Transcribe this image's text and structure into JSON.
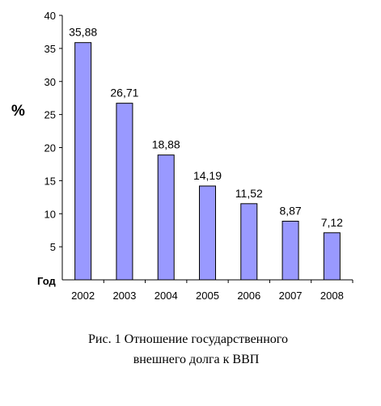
{
  "chart_data": {
    "type": "bar",
    "categories": [
      "2002",
      "2003",
      "2004",
      "2005",
      "2006",
      "2007",
      "2008"
    ],
    "values": [
      35.88,
      26.71,
      18.88,
      14.19,
      11.52,
      8.87,
      7.12
    ],
    "data_labels": [
      "35,88",
      "26,71",
      "18,88",
      "14,19",
      "11,52",
      "8,87",
      "7,12"
    ],
    "ylabel": "%",
    "xlabel": "Год",
    "ylim": [
      0,
      40
    ],
    "yticks": [
      "40",
      "35",
      "30",
      "25",
      "20",
      "15",
      "10",
      "5"
    ],
    "bar_color": "#9999ff",
    "grid": false
  },
  "caption": {
    "line1": "Рис. 1  Отношение государственного",
    "line2": "внешнего долга к ВВП"
  }
}
